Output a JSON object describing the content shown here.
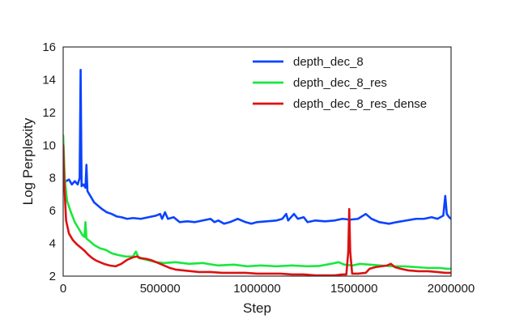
{
  "chart_data": {
    "type": "line",
    "title": "",
    "xlabel": "Step",
    "ylabel": "Log Perplexity",
    "xlim": [
      0,
      2000000
    ],
    "ylim": [
      2,
      16
    ],
    "xticks": [
      0,
      500000,
      1000000,
      1500000,
      2000000
    ],
    "xtick_labels": [
      "0",
      "500000",
      "1000000",
      "1500000",
      "2000000"
    ],
    "yticks": [
      2,
      4,
      6,
      8,
      10,
      12,
      14,
      16
    ],
    "ytick_labels": [
      "2",
      "4",
      "6",
      "8",
      "10",
      "12",
      "14",
      "16"
    ],
    "grid": false,
    "legend_position": "top-right",
    "series": [
      {
        "name": "depth_dec_8",
        "color": "#0a43ff",
        "points": [
          [
            0,
            7.9
          ],
          [
            15000,
            7.8
          ],
          [
            30000,
            7.9
          ],
          [
            45000,
            7.6
          ],
          [
            60000,
            7.8
          ],
          [
            75000,
            7.6
          ],
          [
            85000,
            8.0
          ],
          [
            90000,
            14.6
          ],
          [
            95000,
            7.5
          ],
          [
            105000,
            7.6
          ],
          [
            115000,
            7.4
          ],
          [
            120000,
            8.8
          ],
          [
            125000,
            7.2
          ],
          [
            140000,
            6.9
          ],
          [
            160000,
            6.5
          ],
          [
            180000,
            6.3
          ],
          [
            200000,
            6.1
          ],
          [
            225000,
            5.9
          ],
          [
            250000,
            5.8
          ],
          [
            275000,
            5.65
          ],
          [
            300000,
            5.6
          ],
          [
            330000,
            5.5
          ],
          [
            360000,
            5.55
          ],
          [
            400000,
            5.5
          ],
          [
            440000,
            5.6
          ],
          [
            480000,
            5.7
          ],
          [
            500000,
            5.8
          ],
          [
            510000,
            5.5
          ],
          [
            525000,
            5.9
          ],
          [
            540000,
            5.5
          ],
          [
            570000,
            5.6
          ],
          [
            600000,
            5.3
          ],
          [
            640000,
            5.35
          ],
          [
            680000,
            5.3
          ],
          [
            720000,
            5.4
          ],
          [
            760000,
            5.5
          ],
          [
            780000,
            5.3
          ],
          [
            800000,
            5.4
          ],
          [
            830000,
            5.2
          ],
          [
            860000,
            5.3
          ],
          [
            900000,
            5.5
          ],
          [
            940000,
            5.3
          ],
          [
            970000,
            5.2
          ],
          [
            1000000,
            5.3
          ],
          [
            1050000,
            5.35
          ],
          [
            1100000,
            5.4
          ],
          [
            1130000,
            5.5
          ],
          [
            1150000,
            5.8
          ],
          [
            1160000,
            5.4
          ],
          [
            1190000,
            5.8
          ],
          [
            1210000,
            5.5
          ],
          [
            1240000,
            5.6
          ],
          [
            1260000,
            5.3
          ],
          [
            1300000,
            5.4
          ],
          [
            1350000,
            5.35
          ],
          [
            1400000,
            5.4
          ],
          [
            1440000,
            5.5
          ],
          [
            1480000,
            5.45
          ],
          [
            1520000,
            5.5
          ],
          [
            1560000,
            5.8
          ],
          [
            1590000,
            5.5
          ],
          [
            1630000,
            5.3
          ],
          [
            1680000,
            5.2
          ],
          [
            1720000,
            5.3
          ],
          [
            1770000,
            5.4
          ],
          [
            1820000,
            5.5
          ],
          [
            1860000,
            5.5
          ],
          [
            1900000,
            5.6
          ],
          [
            1930000,
            5.5
          ],
          [
            1960000,
            5.7
          ],
          [
            1970000,
            6.9
          ],
          [
            1978000,
            5.8
          ],
          [
            1990000,
            5.6
          ],
          [
            2000000,
            5.5
          ]
        ]
      },
      {
        "name": "depth_dec_8_res",
        "color": "#17e83c",
        "points": [
          [
            0,
            10.6
          ],
          [
            8000,
            8.0
          ],
          [
            20000,
            6.6
          ],
          [
            40000,
            5.9
          ],
          [
            60000,
            5.3
          ],
          [
            80000,
            4.9
          ],
          [
            100000,
            4.5
          ],
          [
            110000,
            4.4
          ],
          [
            115000,
            5.3
          ],
          [
            120000,
            4.3
          ],
          [
            140000,
            4.1
          ],
          [
            160000,
            3.9
          ],
          [
            190000,
            3.7
          ],
          [
            220000,
            3.6
          ],
          [
            250000,
            3.4
          ],
          [
            280000,
            3.3
          ],
          [
            320000,
            3.2
          ],
          [
            360000,
            3.2
          ],
          [
            375000,
            3.5
          ],
          [
            390000,
            3.1
          ],
          [
            430000,
            3.0
          ],
          [
            480000,
            2.85
          ],
          [
            520000,
            2.8
          ],
          [
            580000,
            2.85
          ],
          [
            650000,
            2.75
          ],
          [
            720000,
            2.8
          ],
          [
            800000,
            2.65
          ],
          [
            880000,
            2.7
          ],
          [
            950000,
            2.6
          ],
          [
            1020000,
            2.65
          ],
          [
            1100000,
            2.6
          ],
          [
            1180000,
            2.65
          ],
          [
            1260000,
            2.6
          ],
          [
            1320000,
            2.62
          ],
          [
            1380000,
            2.75
          ],
          [
            1420000,
            2.85
          ],
          [
            1450000,
            2.7
          ],
          [
            1490000,
            2.65
          ],
          [
            1530000,
            2.75
          ],
          [
            1580000,
            2.7
          ],
          [
            1640000,
            2.65
          ],
          [
            1700000,
            2.6
          ],
          [
            1760000,
            2.6
          ],
          [
            1820000,
            2.55
          ],
          [
            1880000,
            2.5
          ],
          [
            1940000,
            2.5
          ],
          [
            1980000,
            2.45
          ],
          [
            2000000,
            2.45
          ]
        ]
      },
      {
        "name": "depth_dec_8_res_dense",
        "color": "#dd1111",
        "points": [
          [
            0,
            10.0
          ],
          [
            6000,
            7.6
          ],
          [
            15000,
            5.4
          ],
          [
            30000,
            4.6
          ],
          [
            50000,
            4.2
          ],
          [
            70000,
            3.95
          ],
          [
            90000,
            3.75
          ],
          [
            110000,
            3.55
          ],
          [
            130000,
            3.3
          ],
          [
            150000,
            3.1
          ],
          [
            170000,
            2.95
          ],
          [
            190000,
            2.85
          ],
          [
            210000,
            2.75
          ],
          [
            240000,
            2.65
          ],
          [
            270000,
            2.6
          ],
          [
            300000,
            2.75
          ],
          [
            330000,
            3.0
          ],
          [
            360000,
            3.15
          ],
          [
            380000,
            3.2
          ],
          [
            400000,
            3.1
          ],
          [
            430000,
            3.05
          ],
          [
            460000,
            2.95
          ],
          [
            490000,
            2.8
          ],
          [
            520000,
            2.65
          ],
          [
            550000,
            2.5
          ],
          [
            580000,
            2.4
          ],
          [
            620000,
            2.35
          ],
          [
            660000,
            2.3
          ],
          [
            700000,
            2.25
          ],
          [
            760000,
            2.25
          ],
          [
            820000,
            2.2
          ],
          [
            880000,
            2.2
          ],
          [
            940000,
            2.2
          ],
          [
            1000000,
            2.15
          ],
          [
            1060000,
            2.15
          ],
          [
            1120000,
            2.15
          ],
          [
            1180000,
            2.1
          ],
          [
            1240000,
            2.1
          ],
          [
            1300000,
            2.05
          ],
          [
            1360000,
            2.05
          ],
          [
            1400000,
            2.05
          ],
          [
            1440000,
            2.1
          ],
          [
            1460000,
            2.1
          ],
          [
            1470000,
            3.5
          ],
          [
            1475000,
            6.1
          ],
          [
            1480000,
            3.5
          ],
          [
            1490000,
            2.15
          ],
          [
            1520000,
            2.15
          ],
          [
            1560000,
            2.2
          ],
          [
            1580000,
            2.45
          ],
          [
            1610000,
            2.55
          ],
          [
            1640000,
            2.6
          ],
          [
            1670000,
            2.65
          ],
          [
            1690000,
            2.75
          ],
          [
            1710000,
            2.55
          ],
          [
            1740000,
            2.45
          ],
          [
            1780000,
            2.35
          ],
          [
            1830000,
            2.3
          ],
          [
            1880000,
            2.3
          ],
          [
            1930000,
            2.25
          ],
          [
            1970000,
            2.2
          ],
          [
            2000000,
            2.2
          ]
        ]
      }
    ]
  }
}
